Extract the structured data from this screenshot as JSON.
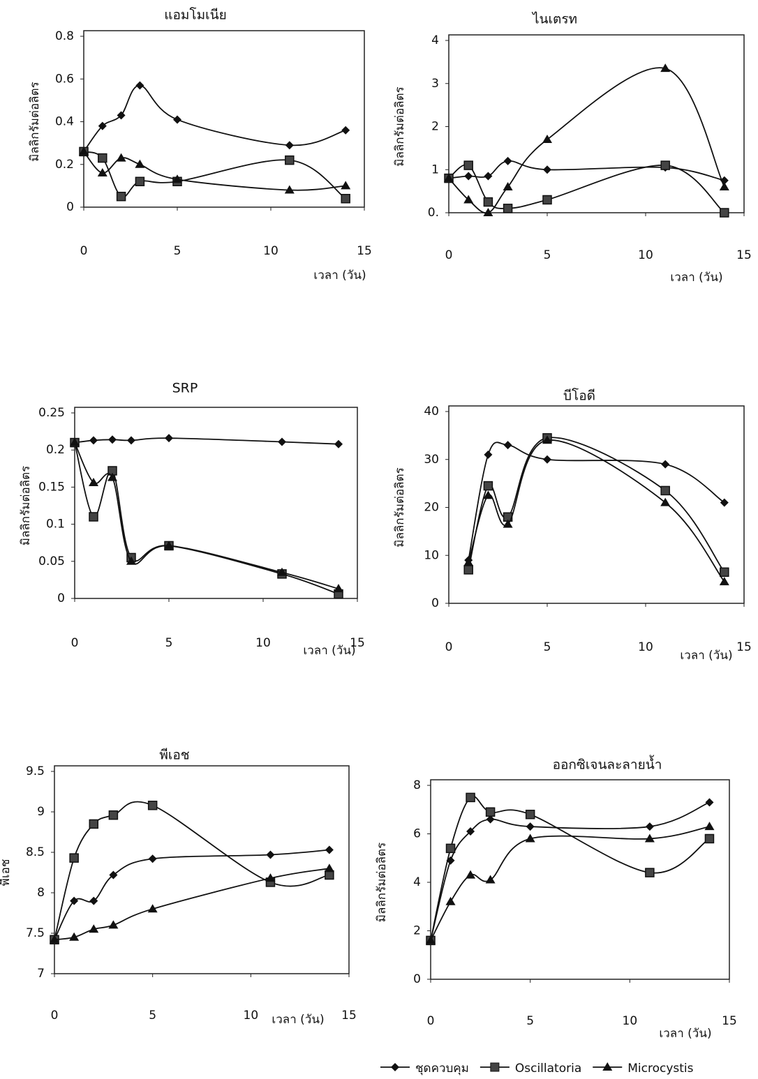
{
  "chart_data": [
    {
      "type": "line",
      "title": "แอมโมเนีย",
      "ylabel": "มิลลิกรัมต่อลิตร",
      "xlabel": "เวลา (วัน)",
      "x": [
        0,
        1,
        2,
        3,
        5,
        11,
        14
      ],
      "series": [
        {
          "values": [
            0.26,
            0.38,
            0.43,
            0.57,
            0.41,
            0.29,
            0.36
          ]
        },
        {
          "values": [
            0.26,
            0.23,
            0.05,
            0.12,
            0.12,
            0.22,
            0.04
          ]
        },
        {
          "values": [
            0.26,
            0.16,
            0.23,
            0.2,
            0.13,
            0.08,
            0.1
          ]
        }
      ],
      "xlim": [
        0,
        15
      ],
      "xticks": [
        0,
        5,
        10,
        15
      ],
      "ylim": [
        0,
        0.8
      ],
      "yticks": [
        0,
        0.2,
        0.4,
        0.6,
        0.8
      ]
    },
    {
      "type": "line",
      "title": "ไนเตรท",
      "ylabel": "มิลลิกรัมต่อลิตร",
      "xlabel": "เวลา (วัน)",
      "x": [
        0,
        1,
        2,
        3,
        5,
        11,
        14
      ],
      "series": [
        {
          "values": [
            0.8,
            0.85,
            0.85,
            1.2,
            1.0,
            1.05,
            0.75
          ]
        },
        {
          "values": [
            0.8,
            1.1,
            0.25,
            0.1,
            0.3,
            1.1,
            0
          ]
        },
        {
          "values": [
            0.8,
            0.3,
            0,
            0.6,
            1.7,
            3.35,
            0.6
          ]
        }
      ],
      "xlim": [
        0,
        15
      ],
      "xticks": [
        0,
        5,
        10,
        15
      ],
      "ylim": [
        0,
        4
      ],
      "yticks": [
        {
          "value": 0,
          "label": "0."
        },
        1,
        2,
        3,
        4
      ]
    },
    {
      "type": "line",
      "title": "SRP",
      "ylabel": "มิลลิกรัมต่อลิตร",
      "xlabel": "เวลา (วัน)",
      "x": [
        0,
        1,
        2,
        3,
        5,
        11,
        14
      ],
      "series": [
        {
          "values": [
            0.21,
            0.213,
            0.214,
            0.213,
            0.216,
            0.211,
            0.208
          ]
        },
        {
          "values": [
            0.21,
            0.11,
            0.172,
            0.055,
            0.071,
            0.033,
            0.006
          ]
        },
        {
          "values": [
            0.21,
            0.156,
            0.163,
            0.05,
            0.071,
            0.035,
            0.013
          ]
        }
      ],
      "xlim": [
        0,
        15
      ],
      "xticks": [
        0,
        5,
        10,
        15
      ],
      "ylim": [
        0,
        0.25
      ],
      "yticks": [
        0,
        0.05,
        0.1,
        0.15,
        0.2,
        0.25
      ]
    },
    {
      "type": "line",
      "title": "บีโอดี",
      "ylabel": "มิลลิกรัมต่อลิตร",
      "xlabel": "เวลา (วัน)",
      "x": [
        1,
        2,
        3,
        5,
        11,
        14
      ],
      "series": [
        {
          "values": [
            9,
            31,
            33,
            30,
            29,
            21
          ]
        },
        {
          "values": [
            7,
            24.5,
            18,
            34.5,
            23.5,
            6.5
          ]
        },
        {
          "values": [
            8.5,
            22.5,
            16.5,
            34,
            21,
            4.5
          ]
        }
      ],
      "xlim": [
        0,
        15
      ],
      "xticks": [
        0,
        5,
        10,
        15
      ],
      "ylim": [
        0,
        40
      ],
      "yticks": [
        0,
        10,
        20,
        30,
        40
      ]
    },
    {
      "type": "line",
      "title": "พีเอช",
      "ylabel": "พีเอช",
      "xlabel": "เวลา (วัน)",
      "x": [
        0,
        1,
        2,
        3,
        5,
        11,
        14
      ],
      "series": [
        {
          "values": [
            7.42,
            7.9,
            7.9,
            8.22,
            8.42,
            8.47,
            8.53
          ]
        },
        {
          "values": [
            7.42,
            8.43,
            8.85,
            8.96,
            9.08,
            8.13,
            8.22
          ]
        },
        {
          "values": [
            7.42,
            7.45,
            7.55,
            7.6,
            7.8,
            8.18,
            8.3
          ]
        }
      ],
      "xlim": [
        0,
        15
      ],
      "xticks": [
        0,
        5,
        10,
        15
      ],
      "ylim": [
        7,
        9.5
      ],
      "yticks": [
        7,
        7.5,
        8,
        8.5,
        9,
        9.5
      ]
    },
    {
      "type": "line",
      "title": "ออกซิเจนละลายน้ำ",
      "ylabel": "มิลลิกรัมต่อลิตร",
      "xlabel": "เวลา (วัน)",
      "x": [
        0,
        1,
        2,
        3,
        5,
        11,
        14
      ],
      "series": [
        {
          "values": [
            1.6,
            4.9,
            6.1,
            6.6,
            6.3,
            6.3,
            7.3
          ]
        },
        {
          "values": [
            1.6,
            5.4,
            7.5,
            6.9,
            6.8,
            4.4,
            5.8
          ]
        },
        {
          "values": [
            1.6,
            3.2,
            4.3,
            4.1,
            5.8,
            5.8,
            6.3
          ]
        }
      ],
      "xlim": [
        0,
        15
      ],
      "xticks": [
        0,
        5,
        10,
        15
      ],
      "ylim": [
        0,
        8
      ],
      "yticks": [
        0,
        2,
        4,
        6,
        8
      ]
    }
  ],
  "legend": [
    "ชุดควบคุม",
    "Oscillatoria",
    "Microcystis"
  ],
  "markers": [
    "diamond",
    "square",
    "triangle"
  ],
  "color": "#111111"
}
